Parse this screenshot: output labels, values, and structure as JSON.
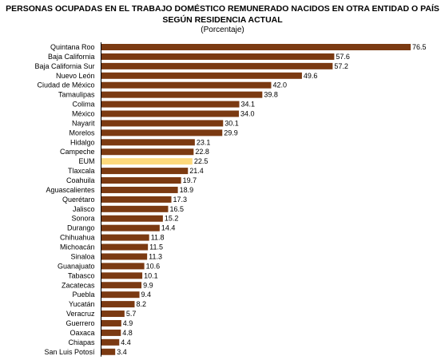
{
  "chart_data": {
    "type": "bar",
    "orientation": "horizontal",
    "title": "PERSONAS OCUPADAS EN EL TRABAJO DOMÉSTICO REMUNERADO NACIDOS EN OTRA ENTIDAD O PAÍS",
    "title_line2": "SEGÚN RESIDENCIA ACTUAL",
    "subtitle": "(Porcentaje)",
    "categories": [
      "Quintana Roo",
      "Baja California",
      "Baja California Sur",
      "Nuevo León",
      "Ciudad de México",
      "Tamaulipas",
      "Colima",
      "México",
      "Nayarit",
      "Morelos",
      "Hidalgo",
      "Campeche",
      "EUM",
      "Tlaxcala",
      "Coahuila",
      "Aguascalientes",
      "Querétaro",
      "Jalisco",
      "Sonora",
      "Durango",
      "Chihuahua",
      "Michoacán",
      "Sinaloa",
      "Guanajuato",
      "Tabasco",
      "Zacatecas",
      "Puebla",
      "Yucatán",
      "Veracruz",
      "Guerrero",
      "Oaxaca",
      "Chiapas",
      "San Luis Potosí"
    ],
    "values": [
      76.5,
      57.6,
      57.2,
      49.6,
      42.0,
      39.8,
      34.1,
      34.0,
      30.1,
      29.9,
      23.1,
      22.8,
      22.5,
      21.4,
      19.7,
      18.9,
      17.3,
      16.5,
      15.2,
      14.4,
      11.8,
      11.5,
      11.3,
      10.6,
      10.1,
      9.9,
      9.4,
      8.2,
      5.7,
      4.9,
      4.8,
      4.4,
      3.4
    ],
    "value_labels": [
      "76.5",
      "57.6",
      "57.2",
      "49.6",
      "42.0",
      "39.8",
      "34.1",
      "34.0",
      "30.1",
      "29.9",
      "23.1",
      "22.8",
      "22.5",
      "21.4",
      "19.7",
      "18.9",
      "17.3",
      "16.5",
      "15.2",
      "14.4",
      "11.8",
      "11.5",
      "11.3",
      "10.6",
      "10.1",
      "9.9",
      "9.4",
      "8.2",
      "5.7",
      "4.9",
      "4.8",
      "4.4",
      "3.4"
    ],
    "highlight_category": "EUM",
    "bar_color": "#7B3A12",
    "highlight_color": "#FDD97C",
    "grid": false,
    "legend": "none"
  }
}
